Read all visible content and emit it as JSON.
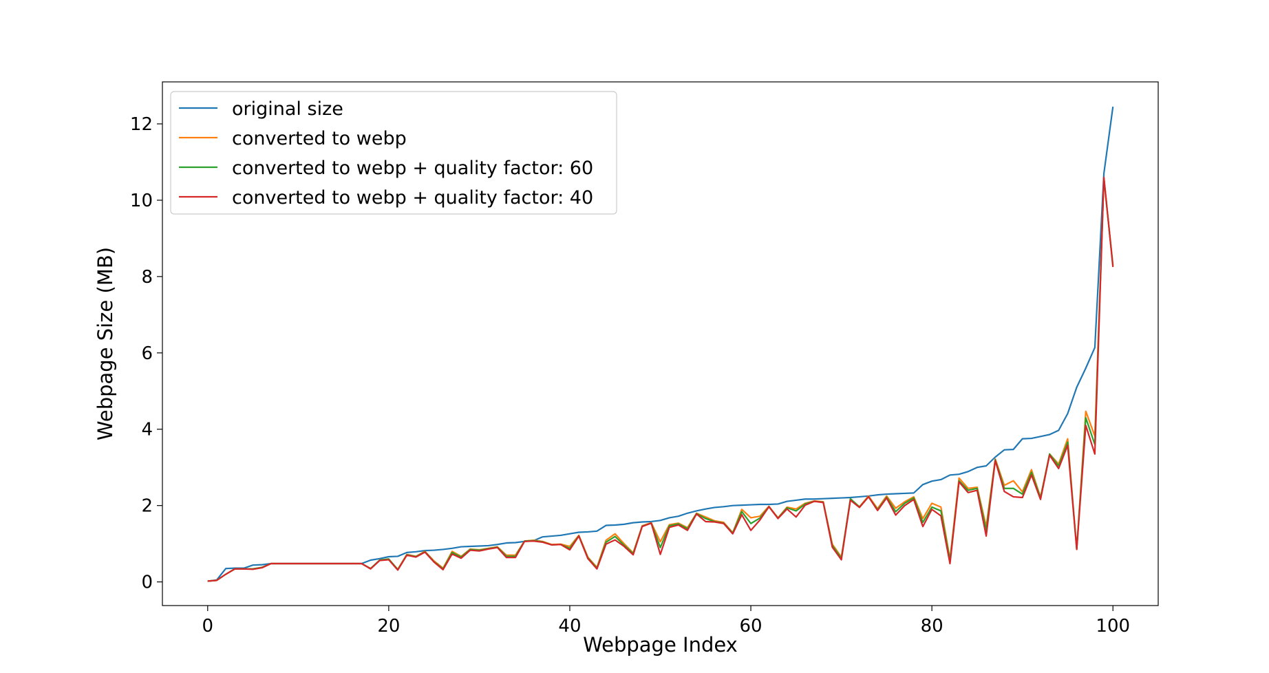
{
  "chart_data": {
    "type": "line",
    "title": "",
    "xlabel": "Webpage Index",
    "ylabel": "Webpage Size (MB)",
    "xlim": [
      -5,
      105
    ],
    "ylim": [
      -0.62,
      13.1
    ],
    "grid": false,
    "legend_position": "top-left",
    "x_ticks": [
      0,
      20,
      40,
      60,
      80,
      100
    ],
    "y_ticks": [
      0,
      2,
      4,
      6,
      8,
      10,
      12
    ],
    "x_tick_labels": [
      "0",
      "20",
      "40",
      "60",
      "80",
      "100"
    ],
    "y_tick_labels": [
      "0",
      "2",
      "4",
      "6",
      "8",
      "10",
      "12"
    ],
    "x": [
      0,
      1,
      2,
      3,
      4,
      5,
      6,
      7,
      8,
      9,
      10,
      11,
      12,
      13,
      14,
      15,
      16,
      17,
      18,
      19,
      20,
      21,
      22,
      23,
      24,
      25,
      26,
      27,
      28,
      29,
      30,
      31,
      32,
      33,
      34,
      35,
      36,
      37,
      38,
      39,
      40,
      41,
      42,
      43,
      44,
      45,
      46,
      47,
      48,
      49,
      50,
      51,
      52,
      53,
      54,
      55,
      56,
      57,
      58,
      59,
      60,
      61,
      62,
      63,
      64,
      65,
      66,
      67,
      68,
      69,
      70,
      71,
      72,
      73,
      74,
      75,
      76,
      77,
      78,
      79,
      80,
      81,
      82,
      83,
      84,
      85,
      86,
      87,
      88,
      89,
      90,
      91,
      92,
      93,
      94,
      95,
      96,
      97,
      98,
      99,
      100
    ],
    "series": [
      {
        "name": "original size",
        "color": "#1f77b4",
        "values": [
          0.02,
          0.05,
          0.35,
          0.36,
          0.36,
          0.44,
          0.45,
          0.48,
          0.48,
          0.48,
          0.48,
          0.48,
          0.48,
          0.48,
          0.48,
          0.48,
          0.48,
          0.48,
          0.57,
          0.61,
          0.66,
          0.67,
          0.77,
          0.79,
          0.82,
          0.83,
          0.85,
          0.88,
          0.92,
          0.93,
          0.94,
          0.95,
          0.98,
          1.02,
          1.03,
          1.06,
          1.08,
          1.18,
          1.2,
          1.22,
          1.26,
          1.3,
          1.31,
          1.33,
          1.48,
          1.49,
          1.51,
          1.55,
          1.57,
          1.58,
          1.61,
          1.68,
          1.72,
          1.8,
          1.86,
          1.91,
          1.95,
          1.97,
          2.0,
          2.01,
          2.02,
          2.03,
          2.03,
          2.04,
          2.11,
          2.14,
          2.17,
          2.17,
          2.18,
          2.19,
          2.2,
          2.21,
          2.23,
          2.25,
          2.28,
          2.3,
          2.31,
          2.32,
          2.33,
          2.55,
          2.64,
          2.68,
          2.8,
          2.82,
          2.89,
          3.0,
          3.04,
          3.27,
          3.46,
          3.47,
          3.75,
          3.76,
          3.81,
          3.86,
          3.97,
          4.41,
          5.1,
          5.6,
          6.14,
          10.7,
          12.45
        ]
      },
      {
        "name": "converted to webp",
        "color": "#ff7f0e",
        "values": [
          0.02,
          0.04,
          0.2,
          0.34,
          0.34,
          0.34,
          0.38,
          0.48,
          0.48,
          0.48,
          0.48,
          0.48,
          0.48,
          0.48,
          0.48,
          0.48,
          0.48,
          0.48,
          0.35,
          0.57,
          0.6,
          0.33,
          0.72,
          0.67,
          0.8,
          0.55,
          0.36,
          0.8,
          0.67,
          0.86,
          0.84,
          0.88,
          0.92,
          0.7,
          0.7,
          1.07,
          1.09,
          1.06,
          0.98,
          0.99,
          0.93,
          1.22,
          0.65,
          0.38,
          1.09,
          1.26,
          1.0,
          0.76,
          1.47,
          1.55,
          1.05,
          1.5,
          1.54,
          1.42,
          1.8,
          1.7,
          1.6,
          1.56,
          1.29,
          1.9,
          1.68,
          1.72,
          1.98,
          1.68,
          1.96,
          1.91,
          2.06,
          2.12,
          2.1,
          0.99,
          0.65,
          2.17,
          1.97,
          2.25,
          1.92,
          2.25,
          1.93,
          2.1,
          2.23,
          1.66,
          2.06,
          1.96,
          0.6,
          2.72,
          2.45,
          2.48,
          1.45,
          3.22,
          2.53,
          2.65,
          2.36,
          2.94,
          2.22,
          3.35,
          3.09,
          3.75,
          0.86,
          4.47,
          3.82,
          10.55,
          8.3
        ]
      },
      {
        "name": "converted to webp + quality factor: 60",
        "color": "#2ca02c",
        "values": [
          0.02,
          0.04,
          0.2,
          0.34,
          0.34,
          0.34,
          0.38,
          0.48,
          0.48,
          0.48,
          0.48,
          0.48,
          0.48,
          0.48,
          0.48,
          0.48,
          0.48,
          0.48,
          0.35,
          0.57,
          0.6,
          0.32,
          0.71,
          0.66,
          0.79,
          0.53,
          0.34,
          0.77,
          0.65,
          0.85,
          0.83,
          0.87,
          0.91,
          0.67,
          0.67,
          1.07,
          1.08,
          1.05,
          0.97,
          0.98,
          0.88,
          1.21,
          0.63,
          0.36,
          1.04,
          1.19,
          0.96,
          0.74,
          1.46,
          1.54,
          0.9,
          1.47,
          1.52,
          1.39,
          1.79,
          1.66,
          1.58,
          1.54,
          1.28,
          1.84,
          1.53,
          1.67,
          1.97,
          1.67,
          1.94,
          1.86,
          2.04,
          2.11,
          2.09,
          0.95,
          0.62,
          2.18,
          1.96,
          2.23,
          1.89,
          2.22,
          1.84,
          2.06,
          2.2,
          1.56,
          1.96,
          1.86,
          0.55,
          2.65,
          2.4,
          2.45,
          1.35,
          3.2,
          2.45,
          2.45,
          2.3,
          2.87,
          2.2,
          3.35,
          3.04,
          3.66,
          0.86,
          4.3,
          3.6,
          10.58,
          8.28
        ]
      },
      {
        "name": "converted to webp + quality factor: 40",
        "color": "#d62728",
        "values": [
          0.02,
          0.04,
          0.2,
          0.34,
          0.34,
          0.33,
          0.37,
          0.48,
          0.48,
          0.48,
          0.48,
          0.48,
          0.48,
          0.48,
          0.48,
          0.48,
          0.48,
          0.48,
          0.34,
          0.56,
          0.58,
          0.31,
          0.7,
          0.65,
          0.78,
          0.52,
          0.32,
          0.73,
          0.62,
          0.83,
          0.81,
          0.86,
          0.9,
          0.64,
          0.64,
          1.06,
          1.07,
          1.04,
          0.97,
          0.98,
          0.84,
          1.2,
          0.61,
          0.34,
          0.99,
          1.1,
          0.93,
          0.71,
          1.45,
          1.54,
          0.72,
          1.43,
          1.49,
          1.35,
          1.78,
          1.58,
          1.57,
          1.53,
          1.26,
          1.76,
          1.35,
          1.62,
          1.97,
          1.66,
          1.91,
          1.7,
          2.01,
          2.11,
          2.08,
          0.91,
          0.58,
          2.14,
          1.95,
          2.23,
          1.87,
          2.2,
          1.75,
          2.0,
          2.16,
          1.45,
          1.9,
          1.73,
          0.48,
          2.62,
          2.34,
          2.4,
          1.2,
          3.18,
          2.37,
          2.23,
          2.21,
          2.8,
          2.16,
          3.32,
          2.97,
          3.58,
          0.85,
          4.1,
          3.35,
          10.6,
          8.25
        ]
      }
    ]
  }
}
